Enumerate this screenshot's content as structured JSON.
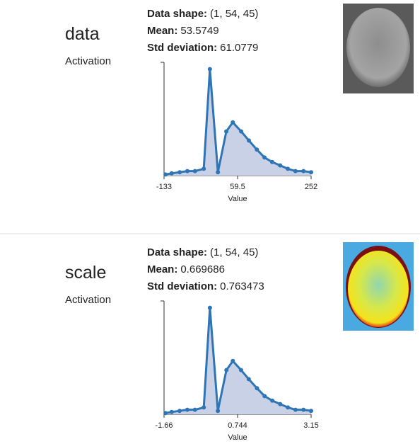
{
  "panels": [
    {
      "title": "data",
      "subtitle": "Activation",
      "stats": [
        {
          "label": "Data shape:",
          "value": "(1, 54, 45)"
        },
        {
          "label": "Mean:",
          "value": 53.5749
        },
        {
          "label": "Std deviation:",
          "value": 61.0779
        }
      ],
      "chart": {
        "type": "line",
        "x_label": "Value",
        "color": "#2f75b5",
        "fill": "#c9d1e6",
        "xlim": [
          -133,
          252
        ],
        "xticks": [
          -133,
          59.5,
          252
        ],
        "ylim": [
          0,
          1
        ],
        "x": [
          -129,
          -113,
          -92,
          -72,
          -52,
          -29,
          -13,
          8,
          30,
          47,
          69,
          89,
          110,
          130,
          150,
          171,
          191,
          211,
          232,
          252
        ],
        "values": [
          0.01,
          0.02,
          0.03,
          0.04,
          0.04,
          0.06,
          0.94,
          0.03,
          0.39,
          0.47,
          0.39,
          0.31,
          0.23,
          0.16,
          0.12,
          0.09,
          0.06,
          0.04,
          0.04,
          0.03
        ]
      }
    },
    {
      "title": "scale",
      "subtitle": "Activation",
      "stats": [
        {
          "label": "Data shape:",
          "value": "(1, 54, 45)"
        },
        {
          "label": "Mean:",
          "value": 0.669686
        },
        {
          "label": "Std deviation:",
          "value": 0.763473
        }
      ],
      "chart": {
        "type": "line",
        "x_label": "Value",
        "color": "#2f75b5",
        "fill": "#c9d1e6",
        "xlim": [
          -1.66,
          3.15
        ],
        "xticks": [
          -1.66,
          0.744,
          3.15
        ],
        "ylim": [
          0,
          1
        ],
        "x": [
          -1.61,
          -1.41,
          -1.15,
          -0.9,
          -0.65,
          -0.36,
          -0.16,
          0.1,
          0.38,
          0.59,
          0.86,
          1.11,
          1.38,
          1.63,
          1.88,
          2.14,
          2.39,
          2.64,
          2.9,
          3.15
        ],
        "values": [
          0.01,
          0.02,
          0.03,
          0.04,
          0.04,
          0.06,
          0.94,
          0.03,
          0.39,
          0.47,
          0.39,
          0.31,
          0.23,
          0.16,
          0.12,
          0.09,
          0.06,
          0.04,
          0.04,
          0.03
        ]
      }
    }
  ]
}
